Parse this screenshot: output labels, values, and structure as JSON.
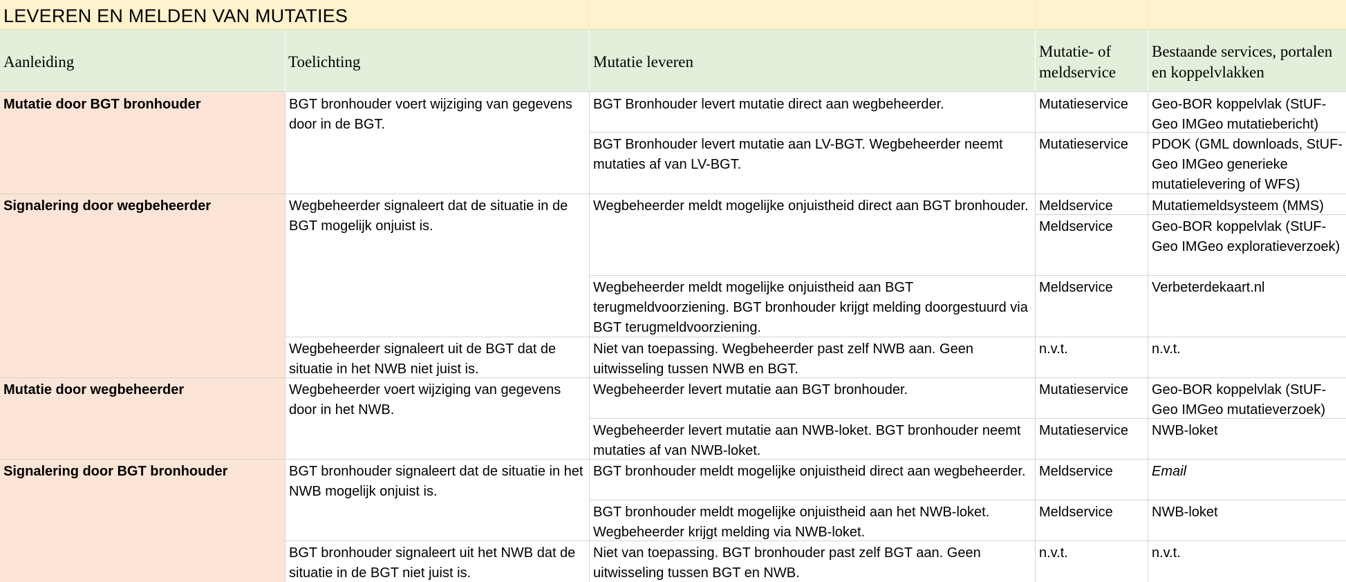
{
  "title": "LEVEREN EN MELDEN VAN MUTATIES",
  "headers": {
    "aanleiding": "Aanleiding",
    "toelichting": "Toelichting",
    "mutatie_leveren": "Mutatie leveren",
    "service": "Mutatie- of meldservice",
    "bestaande": "Bestaande services, portalen en koppelvlakken"
  },
  "groups": [
    {
      "aanleiding": "Mutatie door BGT bronhouder"
    },
    {
      "aanleiding": "Signalering door wegbeheerder"
    },
    {
      "aanleiding": "Mutatie door wegbeheerder"
    },
    {
      "aanleiding": "Signalering door BGT bronhouder"
    }
  ],
  "toelichting": [
    "BGT bronhouder voert wijziging van gegevens door in de BGT.",
    "Wegbeheerder signaleert dat de situatie in de BGT mogelijk onjuist is.",
    "Wegbeheerder signaleert uit de BGT dat de situatie in het NWB niet juist is.",
    "Wegbeheerder voert wijziging van gegevens door in het NWB.",
    "BGT bronhouder signaleert dat de situatie in het NWB mogelijk onjuist is.",
    "BGT bronhouder signaleert uit het NWB dat de situatie in de BGT niet juist is."
  ],
  "rows": [
    {
      "leveren": "BGT Bronhouder levert mutatie direct aan wegbeheerder.",
      "service": "Mutatieservice",
      "bestaande": "Geo-BOR koppelvlak (StUF-Geo IMGeo mutatiebericht)"
    },
    {
      "leveren": "BGT Bronhouder levert mutatie aan LV-BGT. Wegbeheerder neemt mutaties af van LV-BGT.",
      "service": "Mutatieservice",
      "bestaande": "PDOK (GML downloads, StUF-Geo IMGeo generieke mutatielevering of WFS)"
    },
    {
      "leveren": "Wegbeheerder meldt mogelijke onjuistheid direct aan BGT bronhouder.",
      "service": "Meldservice",
      "bestaande": "Mutatiemeldsysteem (MMS)",
      "service2": "Meldservice",
      "bestaande2": "Geo-BOR koppelvlak (StUF-Geo IMGeo exploratieverzoek)"
    },
    {
      "leveren": "Wegbeheerder meldt mogelijke onjuistheid aan BGT terugmeldvoorziening. BGT bronhouder krijgt melding doorgestuurd via BGT terugmeldvoorziening.",
      "service": "Meldservice",
      "bestaande": "Verbeterdekaart.nl"
    },
    {
      "leveren": "Niet van toepassing. Wegbeheerder past zelf NWB aan. Geen uitwisseling tussen NWB en BGT.",
      "service": "n.v.t.",
      "bestaande": "n.v.t."
    },
    {
      "leveren": "Wegbeheerder levert mutatie aan BGT bronhouder.",
      "service": "Mutatieservice",
      "bestaande": "Geo-BOR koppelvlak (StUF-Geo IMGeo mutatieverzoek)"
    },
    {
      "leveren": "Wegbeheerder levert mutatie aan NWB-loket. BGT bronhouder neemt mutaties af van NWB-loket.",
      "service": "Mutatieservice",
      "bestaande": "NWB-loket"
    },
    {
      "leveren": "BGT bronhouder meldt mogelijke onjuistheid direct aan wegbeheerder.",
      "service": "Meldservice",
      "bestaande": "Email"
    },
    {
      "leveren": "BGT bronhouder meldt mogelijke onjuistheid aan het NWB-loket. Wegbeheerder krijgt melding via NWB-loket.",
      "service": "Meldservice",
      "bestaande": "NWB-loket"
    },
    {
      "leveren": "Niet van toepassing. BGT bronhouder past zelf BGT aan. Geen uitwisseling tussen BGT en NWB.",
      "service": "n.v.t.",
      "bestaande": "n.v.t."
    }
  ],
  "colors": {
    "title_bg": "#fff2cc",
    "header_bg": "#e2efda",
    "aanleiding_bg": "#fce4d6",
    "grid": "#d4d4d4"
  }
}
